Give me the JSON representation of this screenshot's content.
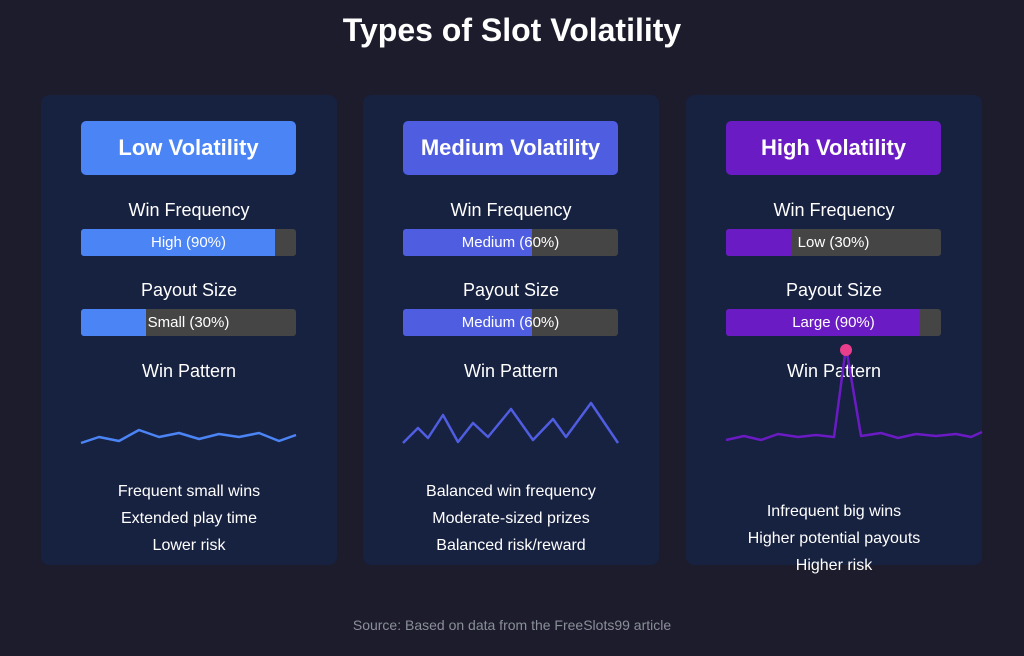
{
  "title": "Types of Slot Volatility",
  "labels": {
    "win_frequency": "Win Frequency",
    "payout_size": "Payout Size",
    "win_pattern": "Win Pattern"
  },
  "cards": [
    {
      "name": "Low Volatility",
      "color": "#4b84f5",
      "win_frequency": {
        "text": "High (90%)",
        "percent": 90
      },
      "payout_size": {
        "text": "Small (30%)",
        "percent": 30
      },
      "pattern_style": "small-frequent",
      "bullets": [
        "Frequent small wins",
        "Extended play time",
        "Lower risk"
      ]
    },
    {
      "name": "Medium Volatility",
      "color": "#4f5de0",
      "win_frequency": {
        "text": "Medium (60%)",
        "percent": 60
      },
      "payout_size": {
        "text": "Medium (60%)",
        "percent": 60
      },
      "pattern_style": "balanced",
      "bullets": [
        "Balanced win frequency",
        "Moderate-sized prizes",
        "Balanced risk/reward"
      ]
    },
    {
      "name": "High Volatility",
      "color": "#6b1bc4",
      "win_frequency": {
        "text": "Low (30%)",
        "percent": 30
      },
      "payout_size": {
        "text": "Large (90%)",
        "percent": 90
      },
      "pattern_style": "rare-spike",
      "spike_marker_color": "#e83e8c",
      "bullets": [
        "Infrequent big wins",
        "Higher potential payouts",
        "Higher risk"
      ]
    }
  ],
  "source": "Source: Based on data from the FreeSlots99 article"
}
